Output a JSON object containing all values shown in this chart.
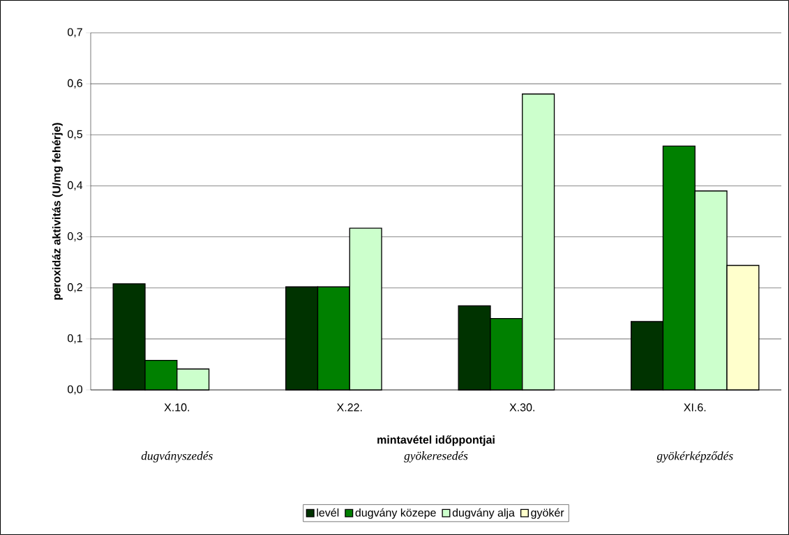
{
  "chart_data": {
    "type": "bar",
    "xlabel": "mintavétel időppontjai",
    "ylabel": "peroxidáz aktivitás (U/mg fehérje)",
    "categories": [
      "X.10.",
      "X.22.",
      "X.30.",
      "XI.6."
    ],
    "series": [
      {
        "name": "levél",
        "color": "#003300",
        "values": [
          0.208,
          0.202,
          0.165,
          0.134
        ]
      },
      {
        "name": "dugvány közepe",
        "color": "#008000",
        "values": [
          0.058,
          0.202,
          0.14,
          0.478
        ]
      },
      {
        "name": "dugvány alja",
        "color": "#ccffcc",
        "values": [
          0.041,
          0.317,
          0.58,
          0.39
        ]
      },
      {
        "name": "gyökér",
        "color": "#ffffcc",
        "values": [
          null,
          null,
          null,
          0.244
        ]
      }
    ],
    "ylim": [
      0,
      0.7
    ],
    "yticks": [
      {
        "value": 0,
        "label": "0,0"
      },
      {
        "value": 0.1,
        "label": "0,1"
      },
      {
        "value": 0.2,
        "label": "0,2"
      },
      {
        "value": 0.3,
        "label": "0,3"
      },
      {
        "value": 0.4,
        "label": "0,4"
      },
      {
        "value": 0.5,
        "label": "0,5"
      },
      {
        "value": 0.6,
        "label": "0,6"
      },
      {
        "value": 0.7,
        "label": "0,7"
      }
    ],
    "grid": "y",
    "legend": "bottom",
    "annotations": [
      "dugványszedés",
      "gyökeresedés",
      "gyökérképződés"
    ]
  }
}
